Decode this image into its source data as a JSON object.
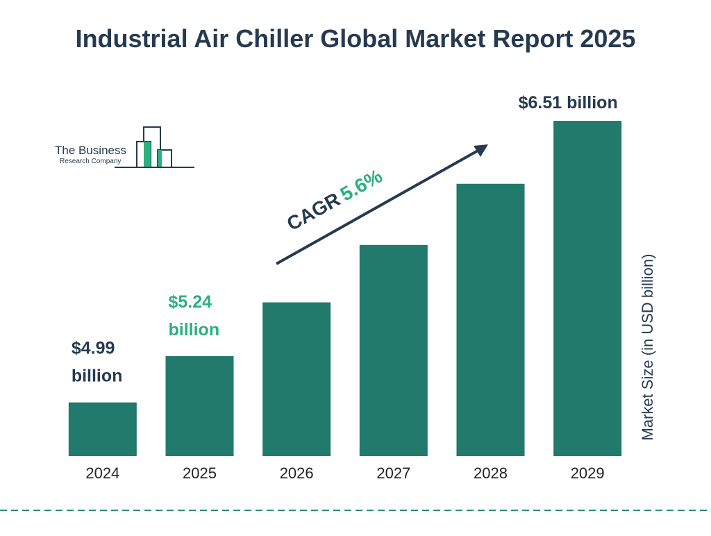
{
  "chart_data": {
    "type": "bar",
    "title": "Industrial Air Chiller Global Market Report 2025",
    "categories": [
      "2024",
      "2025",
      "2026",
      "2027",
      "2028",
      "2029"
    ],
    "values": [
      4.99,
      5.24,
      5.53,
      5.84,
      6.17,
      6.51
    ],
    "value_labels": [
      "$4.99 billion",
      "$5.24 billion",
      null,
      null,
      null,
      "$6.51 billion"
    ],
    "value_label_colors": [
      "#263a4f",
      "#2bb07f",
      null,
      null,
      null,
      "#263a4f"
    ],
    "color": "#217a6b",
    "ylim": [
      4.7,
      6.6
    ],
    "y_label": "Market Size (in USD billion)",
    "cagr": {
      "label": "CAGR",
      "value": "5.6%"
    }
  },
  "logo": {
    "line1": "The Business",
    "line2": "Research Company"
  }
}
